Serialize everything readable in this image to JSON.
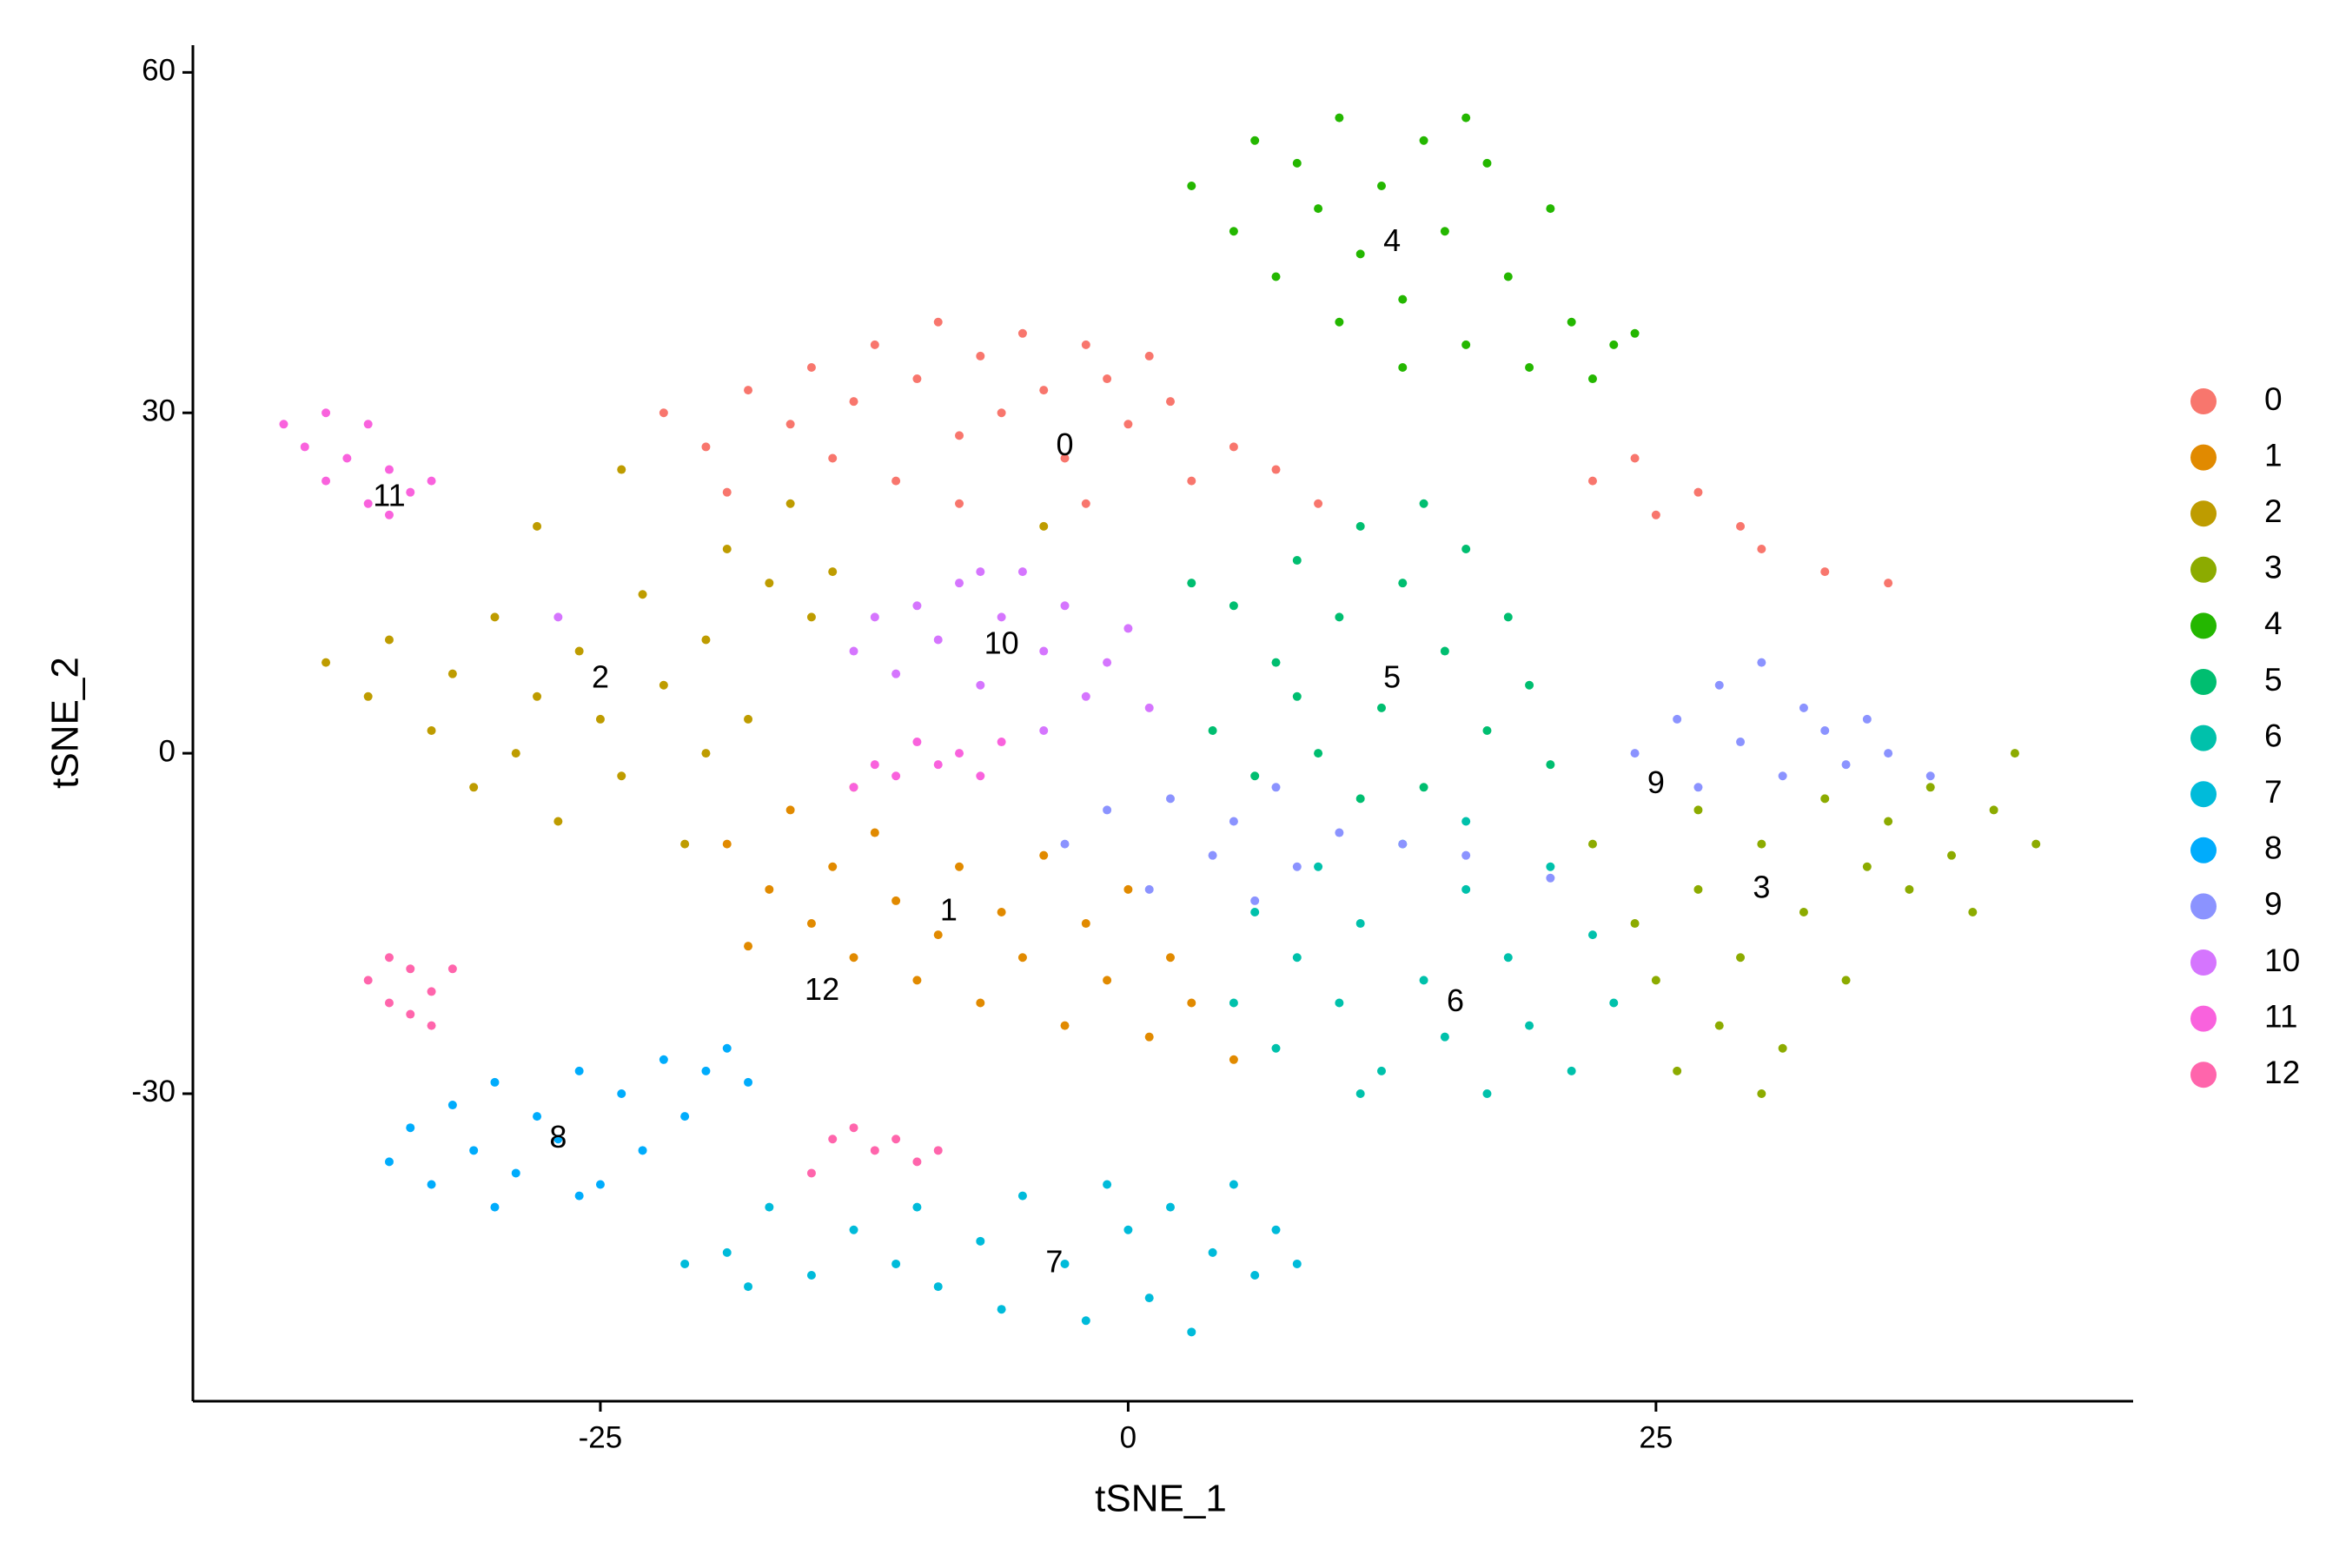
{
  "chart_data": {
    "type": "scatter",
    "x_label": "tSNE_1",
    "y_label": "tSNE_2",
    "xlim": [
      -44.3,
      47.6
    ],
    "ylim": [
      -57.1,
      62.4
    ],
    "xticks": [
      -25,
      0,
      25
    ],
    "yticks": [
      -30,
      0,
      30,
      60
    ],
    "grid": false,
    "legend_position": "right",
    "series": [
      {
        "name": "0",
        "color": "#F8766D",
        "x": [
          -22,
          -20,
          -18,
          -16,
          -15,
          -13,
          -12,
          -10,
          -9,
          -8,
          -7,
          -6,
          -5,
          -4,
          -3,
          -2,
          -1,
          0,
          1,
          2,
          3,
          5,
          7,
          9,
          -14,
          -19,
          -11,
          22,
          24,
          25,
          27,
          29,
          30,
          33,
          36,
          -8,
          -2
        ],
        "y": [
          30,
          27,
          32,
          29,
          34,
          31,
          36,
          33,
          38,
          28,
          35,
          30,
          37,
          32,
          26,
          36,
          33,
          29,
          35,
          31,
          24,
          27,
          25,
          22,
          26,
          23,
          24,
          24,
          26,
          21,
          23,
          20,
          18,
          16,
          15,
          22,
          22
        ]
      },
      {
        "name": "1",
        "color": "#E18A00",
        "x": [
          -19,
          -17,
          -16,
          -15,
          -14,
          -13,
          -12,
          -11,
          -10,
          -9,
          -8,
          -7,
          -6,
          -5,
          -4,
          -3,
          -2,
          -1,
          0,
          1,
          2,
          3,
          5,
          -18,
          -13
        ],
        "y": [
          -8,
          -12,
          -5,
          -15,
          -10,
          -18,
          -7,
          -13,
          -20,
          -16,
          -10,
          -22,
          -14,
          -18,
          -9,
          -24,
          -15,
          -20,
          -12,
          -25,
          -18,
          -22,
          -27,
          -17,
          -3
        ]
      },
      {
        "name": "2",
        "color": "#BE9C00",
        "x": [
          -38,
          -36,
          -35,
          -33,
          -32,
          -31,
          -30,
          -29,
          -28,
          -27,
          -26,
          -25,
          -24,
          -23,
          -22,
          -21,
          -20,
          -19,
          -18,
          -17,
          -16,
          -15,
          -28,
          -24,
          -14,
          -20,
          -4
        ],
        "y": [
          8,
          5,
          10,
          2,
          7,
          -3,
          12,
          0,
          5,
          -6,
          9,
          3,
          -2,
          14,
          6,
          -8,
          10,
          18,
          3,
          15,
          22,
          12,
          20,
          25,
          16,
          0,
          20
        ]
      },
      {
        "name": "3",
        "color": "#8CAB00",
        "x": [
          22,
          24,
          25,
          26,
          27,
          28,
          29,
          30,
          31,
          32,
          33,
          34,
          35,
          36,
          37,
          38,
          39,
          40,
          41,
          42,
          43,
          30,
          27
        ],
        "y": [
          -8,
          -15,
          -20,
          -28,
          -12,
          -24,
          -18,
          -8,
          -26,
          -14,
          -4,
          -20,
          -10,
          -6,
          -12,
          -3,
          -9,
          -14,
          -5,
          0,
          -8,
          -30,
          -5
        ]
      },
      {
        "name": "4",
        "color": "#24B700",
        "x": [
          3,
          5,
          6,
          7,
          8,
          9,
          10,
          11,
          12,
          13,
          14,
          15,
          16,
          17,
          18,
          19,
          20,
          21,
          22,
          23,
          24,
          16,
          13,
          10
        ],
        "y": [
          50,
          46,
          54,
          42,
          52,
          48,
          56,
          44,
          50,
          40,
          54,
          46,
          36,
          52,
          42,
          34,
          48,
          38,
          33,
          36,
          37,
          56,
          34,
          38
        ]
      },
      {
        "name": "5",
        "color": "#00BE70",
        "x": [
          4,
          5,
          6,
          7,
          8,
          9,
          10,
          11,
          12,
          13,
          14,
          15,
          16,
          17,
          18,
          19,
          20,
          11,
          8,
          14,
          3
        ],
        "y": [
          2,
          13,
          -2,
          8,
          17,
          0,
          12,
          20,
          4,
          15,
          -3,
          9,
          18,
          2,
          12,
          6,
          -1,
          -4,
          5,
          22,
          15
        ]
      },
      {
        "name": "6",
        "color": "#00C1AB",
        "x": [
          5,
          6,
          7,
          8,
          9,
          10,
          11,
          12,
          13,
          14,
          15,
          16,
          17,
          18,
          19,
          20,
          21,
          22,
          23,
          16,
          11
        ],
        "y": [
          -22,
          -14,
          -26,
          -18,
          -10,
          -22,
          -15,
          -28,
          -8,
          -20,
          -25,
          -12,
          -30,
          -18,
          -24,
          -10,
          -28,
          -16,
          -22,
          -6,
          -30
        ]
      },
      {
        "name": "7",
        "color": "#00BBDA",
        "x": [
          -21,
          -19,
          -18,
          -17,
          -15,
          -13,
          -11,
          -10,
          -9,
          -7,
          -6,
          -5,
          -3,
          -1,
          0,
          1,
          2,
          3,
          4,
          5,
          6,
          7,
          8,
          -2
        ],
        "y": [
          -45,
          -44,
          -47,
          -40,
          -46,
          -42,
          -45,
          -40,
          -47,
          -43,
          -49,
          -39,
          -45,
          -38,
          -42,
          -48,
          -40,
          -51,
          -44,
          -38,
          -46,
          -42,
          -45,
          -50
        ]
      },
      {
        "name": "8",
        "color": "#00ACFC",
        "x": [
          -35,
          -34,
          -33,
          -32,
          -31,
          -30,
          -29,
          -28,
          -27,
          -26,
          -25,
          -24,
          -23,
          -22,
          -21,
          -20,
          -19,
          -18,
          -30,
          -26
        ],
        "y": [
          -36,
          -33,
          -38,
          -31,
          -35,
          -29,
          -37,
          -32,
          -34,
          -28,
          -38,
          -30,
          -35,
          -27,
          -32,
          -28,
          -26,
          -29,
          -40,
          -39
        ]
      },
      {
        "name": "9",
        "color": "#8B93FF",
        "x": [
          24,
          26,
          27,
          28,
          29,
          30,
          31,
          32,
          33,
          34,
          35,
          36,
          38,
          -3,
          -1,
          1,
          2,
          4,
          5,
          6,
          7,
          8,
          10,
          13,
          16,
          20
        ],
        "y": [
          0,
          3,
          -3,
          6,
          1,
          8,
          -2,
          4,
          2,
          -1,
          3,
          0,
          -2,
          -8,
          -5,
          -12,
          -4,
          -9,
          -6,
          -13,
          -3,
          -10,
          -7,
          -8,
          -9,
          -11
        ]
      },
      {
        "name": "10",
        "color": "#D575FE",
        "x": [
          -13,
          -12,
          -11,
          -10,
          -9,
          -8,
          -7,
          -6,
          -5,
          -4,
          -3,
          -2,
          -1,
          0,
          1,
          -4,
          -27,
          -7
        ],
        "y": [
          9,
          12,
          7,
          13,
          10,
          15,
          6,
          12,
          16,
          9,
          13,
          5,
          8,
          11,
          4,
          2,
          12,
          16
        ]
      },
      {
        "name": "11",
        "color": "#F962DD",
        "x": [
          -40,
          -39,
          -38,
          -37,
          -36,
          -35,
          -36,
          -34,
          -33,
          -38,
          -35,
          -12,
          -11,
          -10,
          -9,
          -8,
          -7,
          -13,
          -6
        ],
        "y": [
          29,
          27,
          30,
          26,
          29,
          25,
          22,
          23,
          24,
          24,
          21,
          -1,
          -2,
          1,
          -1,
          0,
          -2,
          -3,
          1
        ]
      },
      {
        "name": "12",
        "color": "#FF65AC",
        "x": [
          -36,
          -35,
          -34,
          -33,
          -32,
          -35,
          -34,
          -33,
          -14,
          -13,
          -12,
          -11,
          -10,
          -9,
          -15
        ],
        "y": [
          -20,
          -22,
          -19,
          -21,
          -19,
          -18,
          -23,
          -24,
          -34,
          -33,
          -35,
          -34,
          -36,
          -35,
          -37
        ]
      }
    ],
    "annotations": [
      {
        "text": "0",
        "x": -3,
        "y": 27
      },
      {
        "text": "1",
        "x": -8.5,
        "y": -14
      },
      {
        "text": "2",
        "x": -25,
        "y": 6.5
      },
      {
        "text": "3",
        "x": 30,
        "y": -12
      },
      {
        "text": "4",
        "x": 12.5,
        "y": 45
      },
      {
        "text": "5",
        "x": 12.5,
        "y": 6.5
      },
      {
        "text": "6",
        "x": 15.5,
        "y": -22
      },
      {
        "text": "7",
        "x": -3.5,
        "y": -45
      },
      {
        "text": "8",
        "x": -27,
        "y": -34
      },
      {
        "text": "9",
        "x": 25,
        "y": -2.8
      },
      {
        "text": "10",
        "x": -6,
        "y": 9.5
      },
      {
        "text": "11",
        "x": -35,
        "y": 22.5
      },
      {
        "text": "12",
        "x": -14.5,
        "y": -21
      }
    ]
  }
}
